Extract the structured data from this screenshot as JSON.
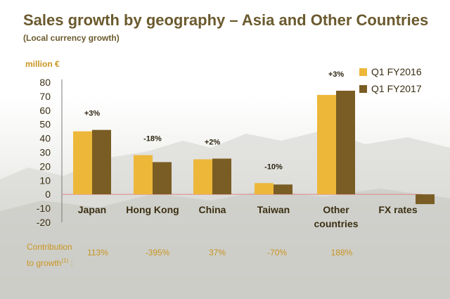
{
  "header": {
    "title": "Sales growth by geography – Asia and Other Countries",
    "subtitle": "(Local currency growth)",
    "unit": "million €"
  },
  "colors": {
    "q1_fy2016": "#edb73a",
    "q1_fy2017": "#7a5d24",
    "title": "#6b5a2e",
    "accent": "#c8951f"
  },
  "contribution": {
    "label_line1": "Contribution",
    "label_line2": "to growth",
    "label_sup": "(1)",
    "label_tail": " :",
    "values": [
      "113%",
      "-395%",
      "37%",
      "-70%",
      "188%"
    ]
  },
  "chart_data": {
    "type": "bar",
    "categories": [
      "Japan",
      "Hong Kong",
      "China",
      "Taiwan",
      "Other countries",
      "FX rates"
    ],
    "category_lines": [
      [
        "Japan"
      ],
      [
        "Hong Kong"
      ],
      [
        "China"
      ],
      [
        "Taiwan"
      ],
      [
        "Other",
        "countries"
      ],
      [
        "FX rates"
      ]
    ],
    "series": [
      {
        "name": "Q1 FY2016",
        "values": [
          45,
          28,
          25,
          8,
          71,
          null
        ]
      },
      {
        "name": "Q1 FY2017",
        "values": [
          46,
          23,
          25.5,
          7,
          74,
          -7
        ]
      }
    ],
    "growth_labels": [
      "+3%",
      "-18%",
      "+2%",
      "-10%",
      "+3%",
      ""
    ],
    "ylabel": "million €",
    "ylim": [
      -20,
      80
    ],
    "yticks": [
      -20,
      -10,
      0,
      10,
      20,
      30,
      40,
      50,
      60,
      70,
      80
    ],
    "legend_position": "top-right",
    "grid": false
  }
}
